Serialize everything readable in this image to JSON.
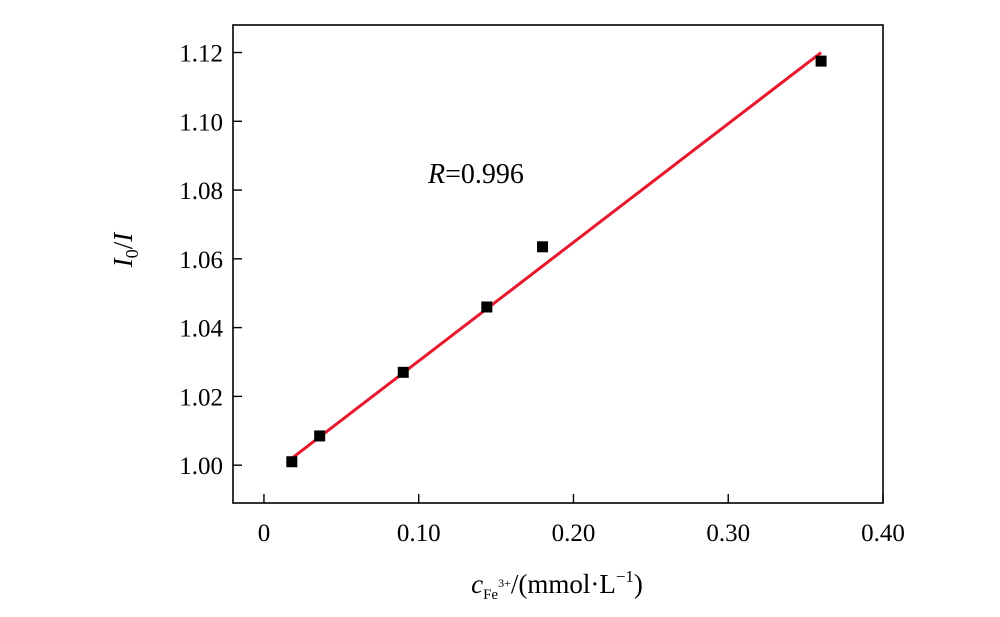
{
  "chart_data": {
    "type": "scatter",
    "title": "",
    "x": [
      0.018,
      0.036,
      0.09,
      0.144,
      0.18,
      0.36
    ],
    "y": [
      1.001,
      1.0085,
      1.027,
      1.046,
      1.0635,
      1.1175
    ],
    "fit_line": {
      "x": [
        0.018,
        0.36
      ],
      "y": [
        1.002,
        1.12
      ],
      "color": "#e8182c"
    },
    "marker_color": "#000000",
    "xlim": [
      -0.02,
      0.4
    ],
    "ylim": [
      0.989,
      1.128
    ],
    "x_ticks": [
      0,
      0.1,
      0.2,
      0.3,
      0.4
    ],
    "x_tick_labels": [
      "0",
      "0.10",
      "0.20",
      "0.30",
      "0.40"
    ],
    "y_ticks": [
      1.0,
      1.02,
      1.04,
      1.06,
      1.08,
      1.1,
      1.12
    ],
    "y_tick_labels": [
      "1.00",
      "1.02",
      "1.04",
      "1.06",
      "1.08",
      "1.10",
      "1.12"
    ],
    "xlabel": {
      "var": "c",
      "sub": "Fe",
      "sup": "3+",
      "rest": "/(mmol·L",
      "exp": "−1",
      "close": ")"
    },
    "ylabel": {
      "num": "I",
      "num_sub": "0",
      "slash": "/",
      "den": "I"
    },
    "annotation": {
      "var": "R",
      "value": "=0.996"
    },
    "grid": false,
    "legend": "none"
  }
}
